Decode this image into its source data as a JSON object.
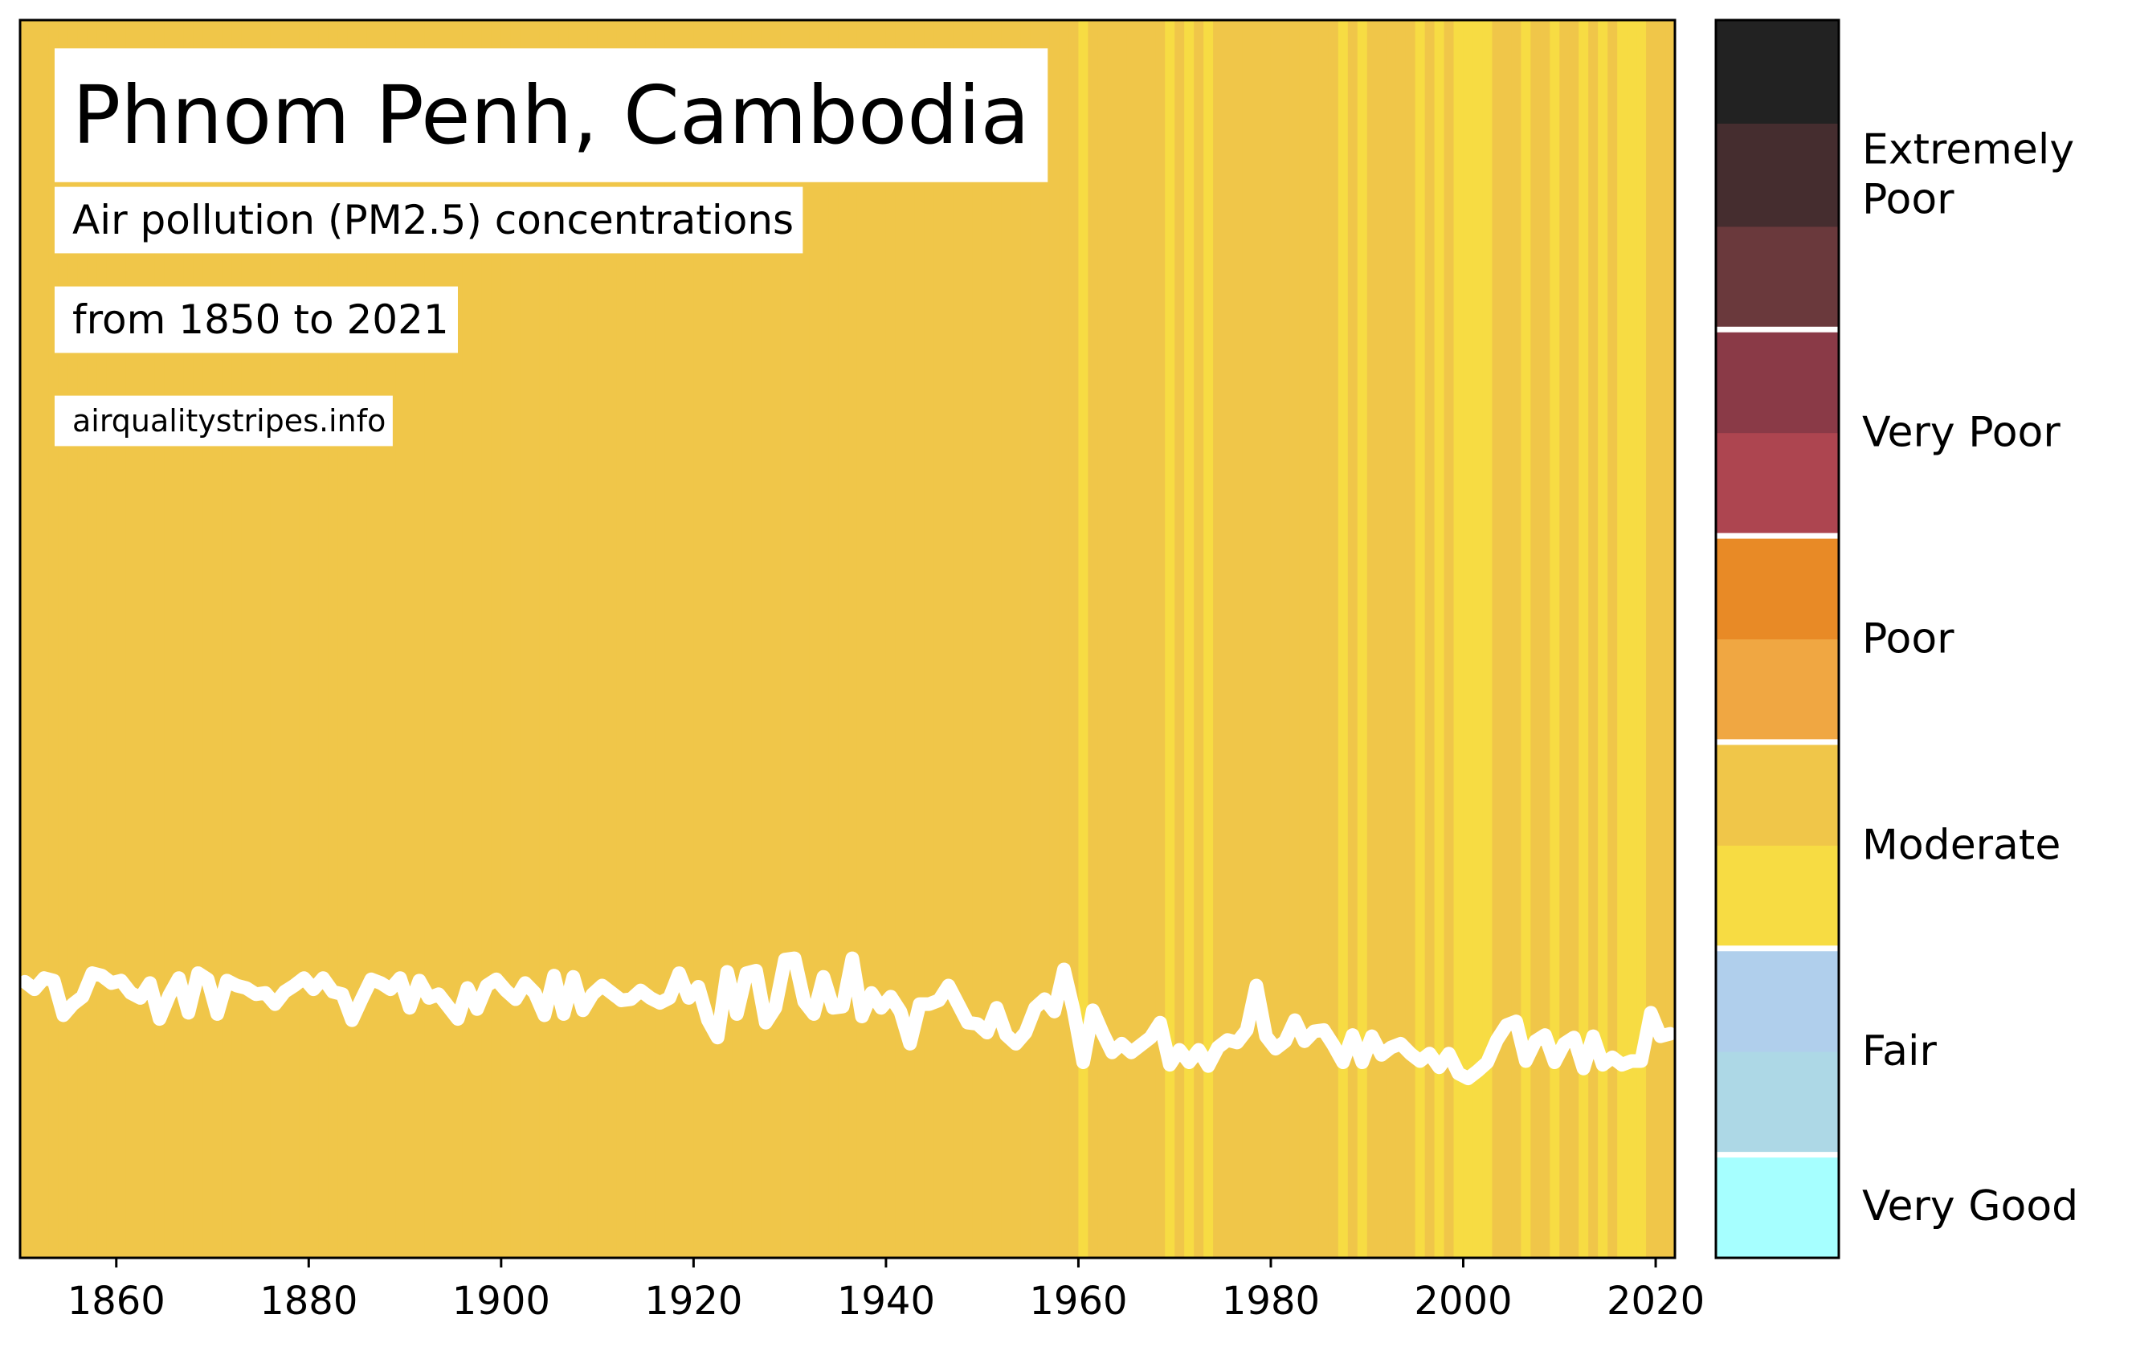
{
  "chart_data": {
    "type": "stripes",
    "title": "Phnom Penh, Cambodia",
    "subtitle": "Air pollution (PM2.5) concentrations",
    "period": "from 1850 to 2021",
    "source": "airqualitystripes.info",
    "line_color": "#ffffff",
    "xlim": [
      1850,
      2022
    ],
    "xticks": [
      1860,
      1880,
      1900,
      1920,
      1940,
      1960,
      1980,
      2000,
      2020
    ],
    "ylim": [
      0,
      100
    ],
    "x": [
      1850,
      1851,
      1852,
      1853,
      1854,
      1855,
      1856,
      1857,
      1858,
      1859,
      1860,
      1861,
      1862,
      1863,
      1864,
      1865,
      1866,
      1867,
      1868,
      1869,
      1870,
      1871,
      1872,
      1873,
      1874,
      1875,
      1876,
      1877,
      1878,
      1879,
      1880,
      1881,
      1882,
      1883,
      1884,
      1885,
      1886,
      1887,
      1888,
      1889,
      1890,
      1891,
      1892,
      1893,
      1894,
      1895,
      1896,
      1897,
      1898,
      1899,
      1900,
      1901,
      1902,
      1903,
      1904,
      1905,
      1906,
      1907,
      1908,
      1909,
      1910,
      1911,
      1912,
      1913,
      1914,
      1915,
      1916,
      1917,
      1918,
      1919,
      1920,
      1921,
      1922,
      1923,
      1924,
      1925,
      1926,
      1927,
      1928,
      1929,
      1930,
      1931,
      1932,
      1933,
      1934,
      1935,
      1936,
      1937,
      1938,
      1939,
      1940,
      1941,
      1942,
      1943,
      1944,
      1945,
      1946,
      1947,
      1948,
      1949,
      1950,
      1951,
      1952,
      1953,
      1954,
      1955,
      1956,
      1957,
      1958,
      1959,
      1960,
      1961,
      1962,
      1963,
      1964,
      1965,
      1966,
      1967,
      1968,
      1969,
      1970,
      1971,
      1972,
      1973,
      1974,
      1975,
      1976,
      1977,
      1978,
      1979,
      1980,
      1981,
      1982,
      1983,
      1984,
      1985,
      1986,
      1987,
      1988,
      1989,
      1990,
      1991,
      1992,
      1993,
      1994,
      1995,
      1996,
      1997,
      1998,
      1999,
      2000,
      2001,
      2002,
      2003,
      2004,
      2005,
      2006,
      2007,
      2008,
      2009,
      2010,
      2011,
      2012,
      2013,
      2014,
      2015,
      2016,
      2017,
      2018,
      2019,
      2020,
      2021
    ],
    "values": [
      22.3,
      21.7,
      22.6,
      22.4,
      19.6,
      20.5,
      21.1,
      23.0,
      22.8,
      22.2,
      22.4,
      21.4,
      21.0,
      22.2,
      19.3,
      21.2,
      22.6,
      19.8,
      23.0,
      22.5,
      19.7,
      22.4,
      22.0,
      21.8,
      21.3,
      21.4,
      20.5,
      21.5,
      22.0,
      22.6,
      21.7,
      22.6,
      21.5,
      21.3,
      19.2,
      20.9,
      22.5,
      22.2,
      21.7,
      22.6,
      20.2,
      22.4,
      21.0,
      21.3,
      20.3,
      19.3,
      21.8,
      20.1,
      22.0,
      22.5,
      21.6,
      20.9,
      22.2,
      21.4,
      19.6,
      22.8,
      19.7,
      22.7,
      20.0,
      21.3,
      22.0,
      21.4,
      20.8,
      20.9,
      21.6,
      21.0,
      20.6,
      21.0,
      23.0,
      21.0,
      21.9,
      19.2,
      17.8,
      23.1,
      19.7,
      23.0,
      23.2,
      19.0,
      20.2,
      24.1,
      24.2,
      20.7,
      19.7,
      22.7,
      20.2,
      20.3,
      24.2,
      19.5,
      21.4,
      20.2,
      21.1,
      19.9,
      17.3,
      20.5,
      20.5,
      20.8,
      22.0,
      20.5,
      19.0,
      18.9,
      18.2,
      20.2,
      18.0,
      17.3,
      18.2,
      20.2,
      20.9,
      19.9,
      23.3,
      20.0,
      15.8,
      20.0,
      18.2,
      16.6,
      17.3,
      16.6,
      17.2,
      17.8,
      19.0,
      15.6,
      16.8,
      15.8,
      16.8,
      15.5,
      17.0,
      17.6,
      17.4,
      18.4,
      22.0,
      17.9,
      16.9,
      17.5,
      19.2,
      17.5,
      18.3,
      18.4,
      17.2,
      15.8,
      18.0,
      15.8,
      17.9,
      16.4,
      17.0,
      17.3,
      16.5,
      15.9,
      16.5,
      15.4,
      16.5,
      14.9,
      14.5,
      15.1,
      15.8,
      17.6,
      18.8,
      19.1,
      15.9,
      17.5,
      18.0,
      15.8,
      17.3,
      17.8,
      15.3,
      17.9,
      15.6,
      16.2,
      15.6,
      15.9,
      15.9,
      19.8,
      17.9,
      18.1
    ],
    "colorbar": {
      "bounds": [
        0,
        5,
        7.5,
        10,
        16,
        25,
        37.5,
        50,
        62.5,
        75,
        100,
        150,
        250
      ],
      "colors": [
        "#a6ffff",
        "#add8e6",
        "#b0cfec",
        "#f7dc43",
        "#f0c649",
        "#f0a742",
        "#e88a26",
        "#ad4550",
        "#8a3a47",
        "#6a393c",
        "#452d2f",
        "#222222"
      ],
      "groups": [
        {
          "label": [
            "Very Good"
          ],
          "range": [
            0,
            5
          ]
        },
        {
          "label": [
            "Fair"
          ],
          "range": [
            5,
            10
          ]
        },
        {
          "label": [
            "Moderate"
          ],
          "range": [
            10,
            25
          ]
        },
        {
          "label": [
            "Poor"
          ],
          "range": [
            25,
            50
          ]
        },
        {
          "label": [
            "Very Poor"
          ],
          "range": [
            50,
            75
          ]
        },
        {
          "label": [
            "Extremely",
            "Poor"
          ],
          "range": [
            75,
            250
          ]
        }
      ]
    }
  }
}
